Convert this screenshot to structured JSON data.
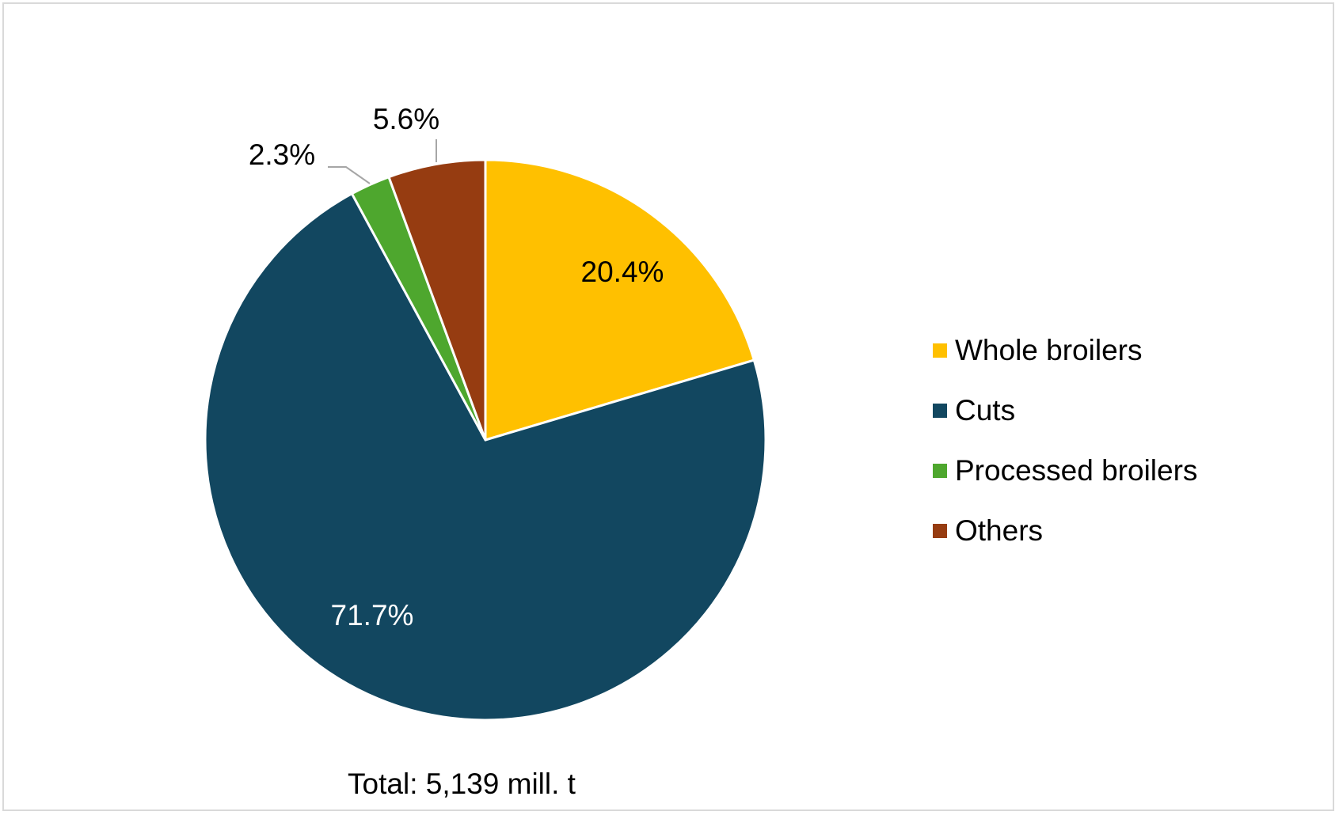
{
  "chart_data": {
    "type": "pie",
    "title": "",
    "categories": [
      "Whole broilers",
      "Cuts",
      "Processed broilers",
      "Others"
    ],
    "values": [
      20.4,
      71.7,
      2.3,
      5.6
    ],
    "labels": [
      "20.4%",
      "71.7%",
      "2.3%",
      "5.6%"
    ],
    "colors": [
      "#FFC000",
      "#124760",
      "#4EA72E",
      "#963C11"
    ],
    "label_colors": [
      "#000000",
      "#ffffff",
      "#000000",
      "#000000"
    ],
    "legend_position": "right",
    "footer": "Total: 5,139 mill. t"
  }
}
